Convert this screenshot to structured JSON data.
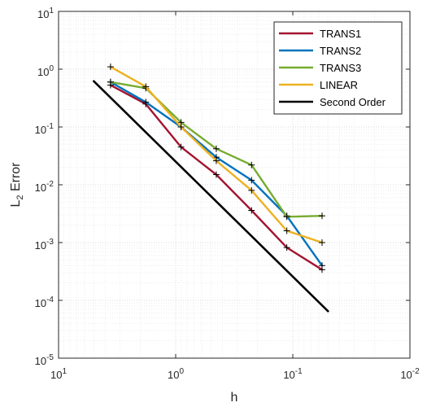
{
  "chart_data": {
    "type": "line",
    "xlabel": "h",
    "ylabel_main": "L",
    "ylabel_sub": "2",
    "ylabel_rest": " Error",
    "x_scale": "log",
    "y_scale": "log",
    "x_direction": "reversed",
    "xlim": [
      10,
      0.01
    ],
    "ylim": [
      1e-05,
      10
    ],
    "grid": "on (major and minor, dotted)",
    "legend_position": "top-right",
    "x_ticks": [
      {
        "value": 10,
        "base": "10",
        "exp": "1"
      },
      {
        "value": 1,
        "base": "10",
        "exp": "0"
      },
      {
        "value": 0.1,
        "base": "10",
        "exp": "-1"
      },
      {
        "value": 0.01,
        "base": "10",
        "exp": "-2"
      }
    ],
    "y_ticks": [
      {
        "value": 10,
        "base": "10",
        "exp": "1"
      },
      {
        "value": 1,
        "base": "10",
        "exp": "0"
      },
      {
        "value": 0.1,
        "base": "10",
        "exp": "-1"
      },
      {
        "value": 0.01,
        "base": "10",
        "exp": "-2"
      },
      {
        "value": 0.001,
        "base": "10",
        "exp": "-3"
      },
      {
        "value": 0.0001,
        "base": "10",
        "exp": "-4"
      },
      {
        "value": 1e-05,
        "base": "10",
        "exp": "-5"
      }
    ],
    "series": [
      {
        "name": "TRANS1",
        "color": "#A2142F",
        "marker": "+",
        "x": [
          3.6,
          1.8,
          0.9,
          0.45,
          0.225,
          0.1125,
          0.05625
        ],
        "y": [
          0.53,
          0.25,
          0.045,
          0.015,
          0.0036,
          0.00082,
          0.00034
        ]
      },
      {
        "name": "TRANS2",
        "color": "#0072BD",
        "marker": "+",
        "x": [
          3.6,
          1.8,
          0.9,
          0.45,
          0.225,
          0.1125,
          0.05625
        ],
        "y": [
          0.6,
          0.27,
          0.1,
          0.03,
          0.012,
          0.0029,
          0.0004
        ]
      },
      {
        "name": "TRANS3",
        "color": "#77AC30",
        "marker": "+",
        "x": [
          3.6,
          1.8,
          0.9,
          0.45,
          0.225,
          0.1125,
          0.05625
        ],
        "y": [
          0.6,
          0.47,
          0.12,
          0.042,
          0.022,
          0.0028,
          0.0029
        ]
      },
      {
        "name": "LINEAR",
        "color": "#EDB120",
        "marker": "+",
        "x": [
          3.6,
          1.8,
          0.9,
          0.45,
          0.225,
          0.1125,
          0.05625
        ],
        "y": [
          1.1,
          0.5,
          0.1,
          0.026,
          0.008,
          0.0016,
          0.001
        ]
      },
      {
        "name": "Second Order",
        "color": "#000000",
        "marker": "none",
        "x": [
          5.0,
          0.05
        ],
        "y": [
          0.62,
          6.5e-05
        ]
      }
    ]
  }
}
